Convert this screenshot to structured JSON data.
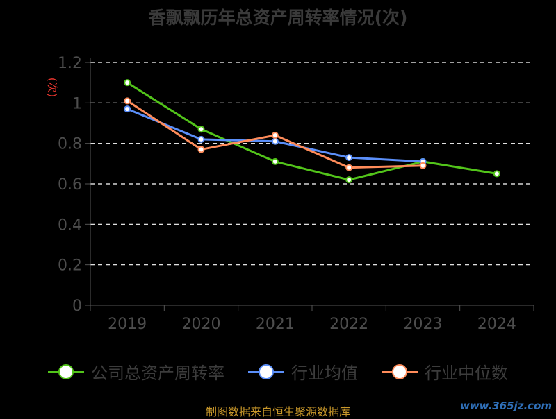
{
  "chart_data": {
    "type": "line",
    "title": "香飘飘历年总资产周转率情况(次)",
    "ylabel": "(次)",
    "xlabel": "",
    "categories": [
      "2019",
      "2020",
      "2021",
      "2022",
      "2023",
      "2024"
    ],
    "ylim": [
      0,
      1.2
    ],
    "yticks": [
      "0",
      "0.2",
      "0.4",
      "0.6",
      "0.8",
      "1",
      "1.2"
    ],
    "grid": true,
    "legend_position": "bottom",
    "series": [
      {
        "name": "公司总资产周转率",
        "values": [
          1.1,
          0.87,
          0.71,
          0.62,
          0.71,
          0.65
        ],
        "color": "#52c41a"
      },
      {
        "name": "行业均值",
        "values": [
          0.97,
          0.82,
          0.81,
          0.73,
          0.71,
          null
        ],
        "color": "#5b8ff9"
      },
      {
        "name": "行业中位数",
        "values": [
          1.01,
          0.77,
          0.84,
          0.68,
          0.69,
          null
        ],
        "color": "#ff8c5a"
      }
    ]
  },
  "source_note": "制图数据来自恒生聚源数据库",
  "watermark": "www.365jz.com",
  "colors": {
    "background": "#000000",
    "grid": "#ffffff",
    "axis": "#555555",
    "ylabel": "#e8352e"
  }
}
